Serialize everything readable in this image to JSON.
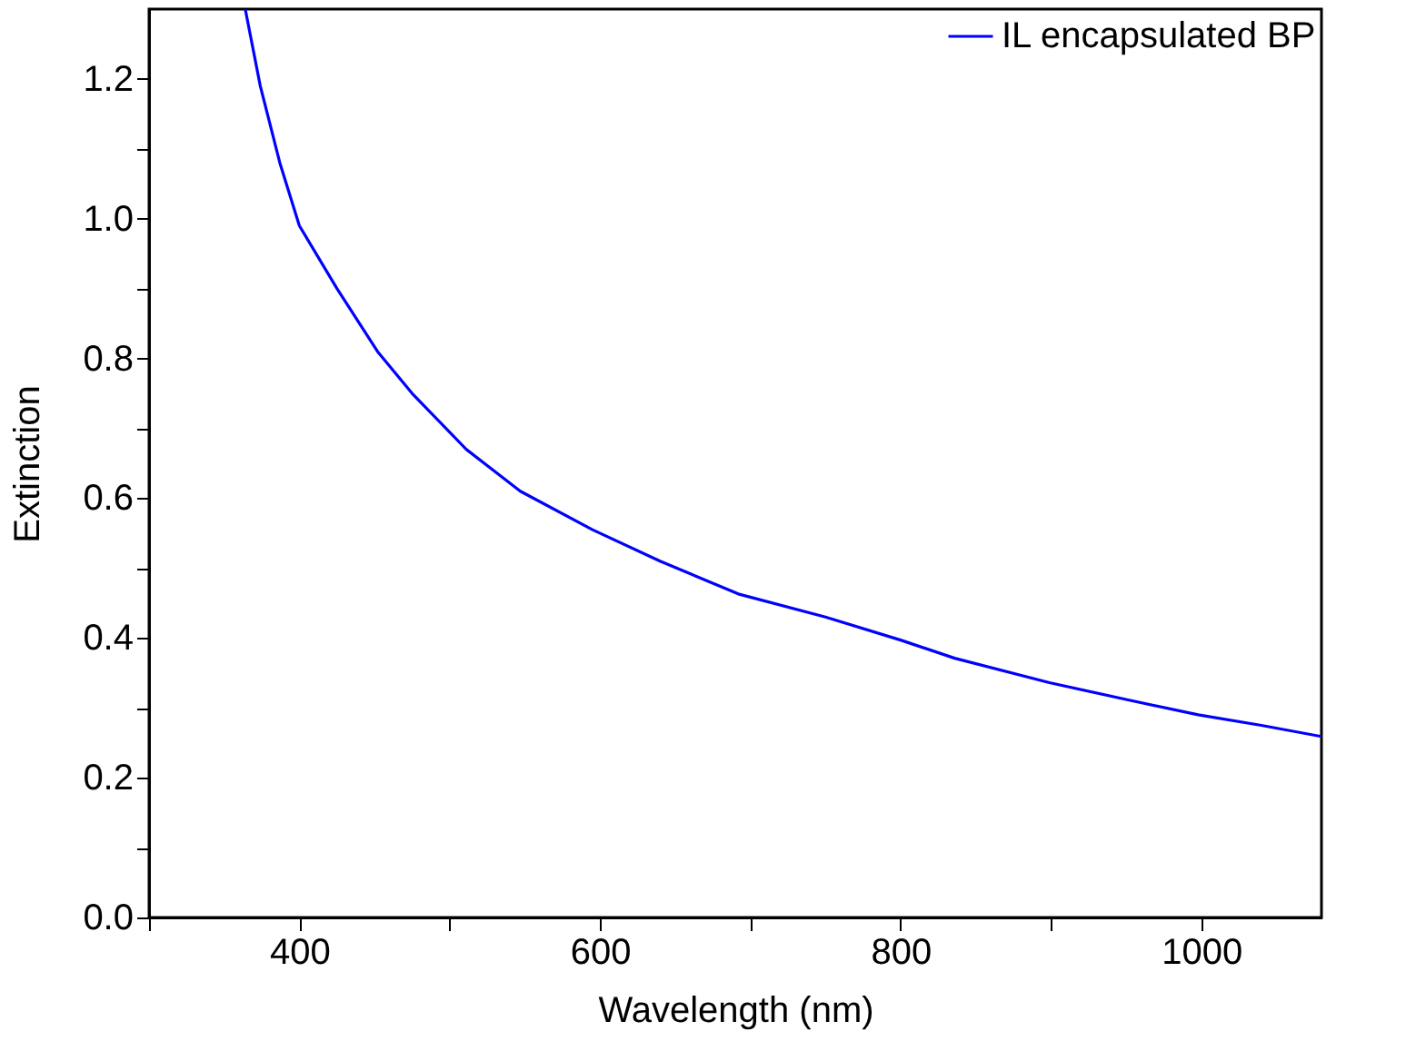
{
  "chart_data": {
    "type": "line",
    "xlabel": "Wavelength (nm)",
    "ylabel": "Extinction",
    "xlim": [
      300,
      1080
    ],
    "xticks": [
      {
        "value": 300,
        "label": null
      },
      400,
      {
        "value": 500,
        "label": null
      },
      600,
      {
        "value": 700,
        "label": null
      },
      800,
      {
        "value": 900,
        "label": null
      },
      1000
    ],
    "ylim": [
      0,
      1.3
    ],
    "yticks": [
      "0.0",
      {
        "value": 0.1,
        "label": null
      },
      0.2,
      {
        "value": 0.3,
        "label": null
      },
      0.4,
      {
        "value": 0.5,
        "label": null
      },
      0.6,
      {
        "value": 0.7,
        "label": null
      },
      0.8,
      {
        "value": 0.9,
        "label": null
      },
      "1.0",
      {
        "value": 1.1,
        "label": null
      },
      1.2
    ],
    "legend": "top right",
    "grid": false,
    "line_style": "solid",
    "series": [
      {
        "name": "IL encapsulated BP",
        "color": "#0000ff",
        "x": [
          364,
          374,
          387,
          400,
          425,
          452,
          475,
          511,
          547,
          595,
          640,
          692,
          750,
          800,
          836,
          899,
          950,
          998,
          1040,
          1080
        ],
        "values": [
          1.3,
          1.19,
          1.08,
          0.99,
          0.9,
          0.81,
          0.75,
          0.67,
          0.61,
          0.555,
          0.51,
          0.463,
          0.43,
          0.397,
          0.371,
          0.336,
          0.312,
          0.29,
          0.275,
          0.259
        ]
      }
    ]
  }
}
